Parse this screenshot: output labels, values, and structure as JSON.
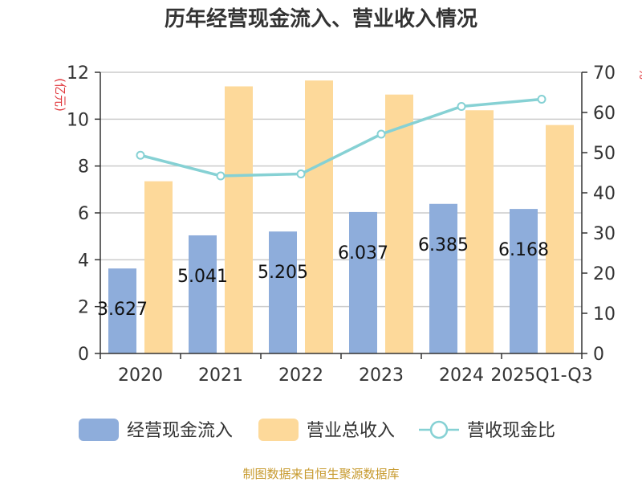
{
  "chart_data": {
    "type": "bar",
    "title": "历年经营现金流入、营业收入情况",
    "categories": [
      "2020",
      "2021",
      "2022",
      "2023",
      "2024",
      "2025Q1-Q3"
    ],
    "series": [
      {
        "name": "经营现金流入",
        "axis": "left",
        "kind": "bar",
        "color": "#8eaddb",
        "values": [
          3.627,
          5.041,
          5.205,
          6.037,
          6.385,
          6.168
        ]
      },
      {
        "name": "营业总收入",
        "axis": "left",
        "kind": "bar",
        "color": "#fdd99a",
        "values": [
          7.35,
          11.4,
          11.65,
          11.05,
          10.38,
          9.75
        ]
      },
      {
        "name": "营收现金比",
        "axis": "right",
        "kind": "line",
        "color": "#86d1d4",
        "values": [
          49.35,
          44.2,
          44.7,
          54.6,
          61.5,
          63.3
        ]
      }
    ],
    "data_labels": [
      "3.627",
      "5.041",
      "5.205",
      "6.037",
      "6.385",
      "6.168"
    ],
    "left_axis": {
      "label": "(亿元)",
      "min": 0,
      "max": 12,
      "ticks": [
        "0",
        "2",
        "4",
        "6",
        "8",
        "10",
        "12"
      ]
    },
    "right_axis": {
      "label": "%",
      "min": 0,
      "max": 70,
      "ticks": [
        "0",
        "10",
        "20",
        "30",
        "40",
        "50",
        "60",
        "70"
      ]
    },
    "grid": true,
    "legend_position": "bottom",
    "source": "制图数据来自恒生聚源数据库"
  }
}
